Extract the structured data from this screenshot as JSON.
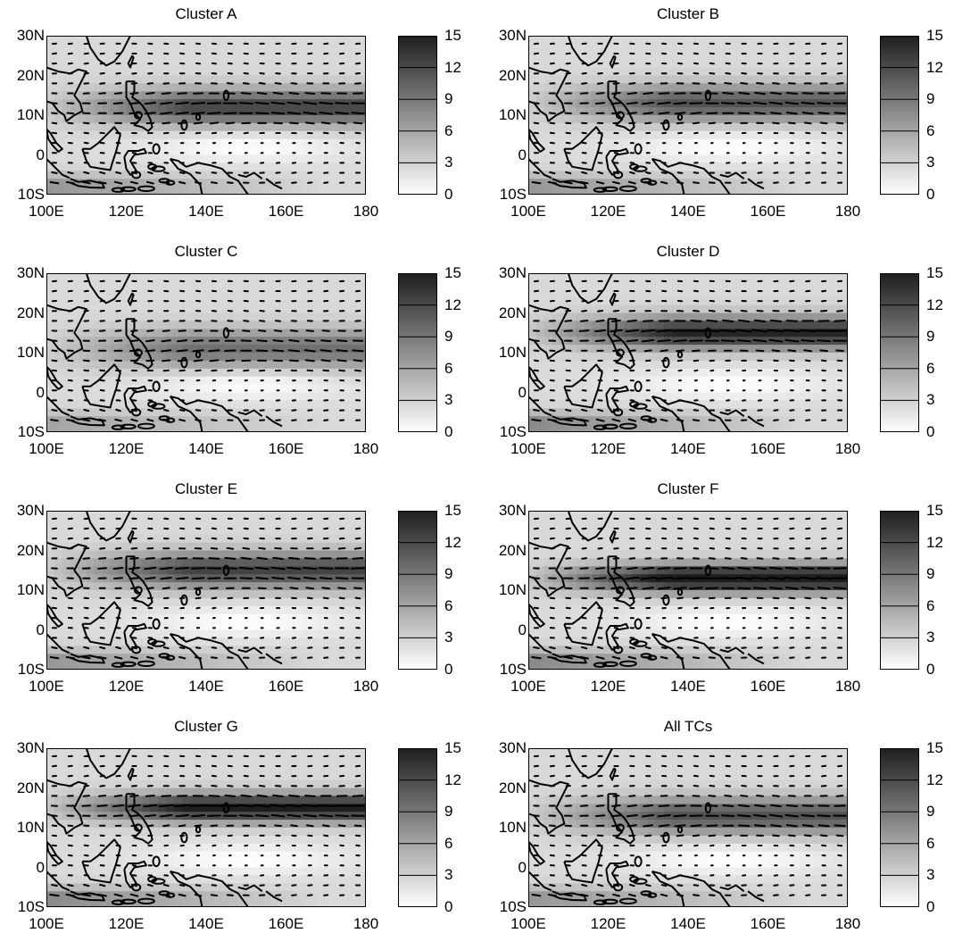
{
  "figure": {
    "panels": [
      {
        "title": "Cluster A"
      },
      {
        "title": "Cluster B"
      },
      {
        "title": "Cluster C"
      },
      {
        "title": "Cluster D"
      },
      {
        "title": "Cluster E"
      },
      {
        "title": "Cluster F"
      },
      {
        "title": "Cluster G"
      },
      {
        "title": "All TCs"
      }
    ],
    "lat_labels": [
      "30N",
      "20N",
      "10N",
      "0",
      "10S"
    ],
    "lon_labels": [
      "100E",
      "120E",
      "140E",
      "160E",
      "180"
    ],
    "colorbar_labels": [
      "15",
      "12",
      "9",
      "6",
      "3",
      "0"
    ],
    "colorbar_range": [
      0,
      15
    ],
    "colormap": {
      "low": "#ffffff",
      "high": "#1e1e1e"
    },
    "vector_color": "#000000",
    "coastline_color": "#000000"
  }
}
